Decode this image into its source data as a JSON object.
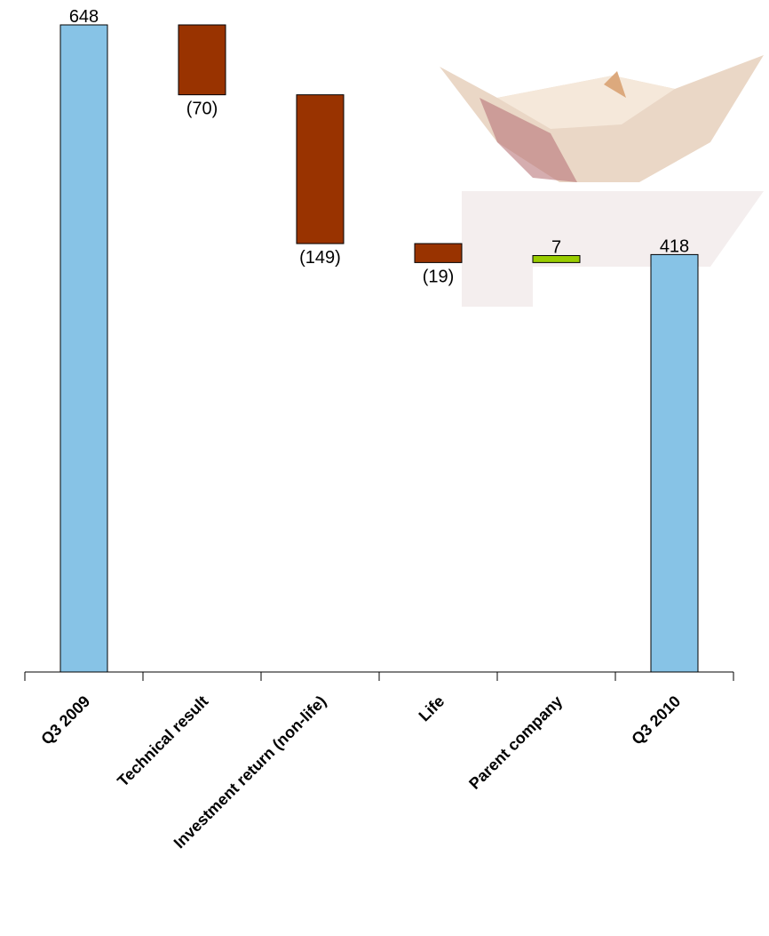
{
  "chart_data": {
    "type": "waterfall",
    "categories": [
      "Q3 2009",
      "Technical result",
      "Investment return (non-life)",
      "Life",
      "Parent company",
      "Q3 2010"
    ],
    "values": [
      648,
      -70,
      -149,
      -19,
      7,
      418
    ],
    "value_labels": [
      "648",
      "(70)",
      "(149)",
      "(19)",
      "7",
      "418"
    ],
    "colors": [
      "#87c3e6",
      "#993300",
      "#993300",
      "#993300",
      "#99cc00",
      "#87c3e6"
    ]
  }
}
